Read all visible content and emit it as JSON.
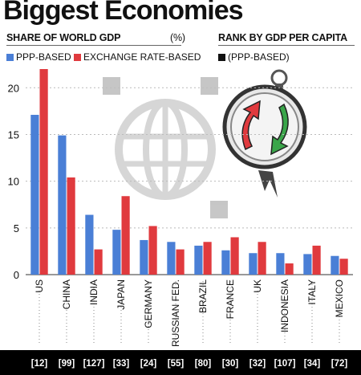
{
  "title": "Biggest Economies",
  "share_heading": "SHARE OF WORLD GDP",
  "share_unit": "(%)",
  "rank_heading": "RANK BY GDP PER CAPITA",
  "legend": {
    "ppp": "PPP-BASED",
    "exchange": "EXCHANGE RATE-BASED",
    "rank": "(PPP-BASED)"
  },
  "colors": {
    "ppp": "#4a7fd6",
    "exchange": "#e03a3e",
    "rank": "#111111",
    "grid": "#bbbbbb"
  },
  "chart_data": {
    "type": "bar",
    "categories": [
      "US",
      "CHINA",
      "INDIA",
      "JAPAN",
      "GERMANY",
      "RUSSIAN FED.",
      "BRAZIL",
      "FRANCE",
      "UK",
      "INDONESIA",
      "ITALY",
      "MEXICO"
    ],
    "series": [
      {
        "name": "PPP-BASED",
        "values": [
          17.1,
          14.9,
          6.4,
          4.8,
          3.7,
          3.5,
          3.1,
          2.6,
          2.3,
          2.3,
          2.2,
          2.0
        ]
      },
      {
        "name": "EXCHANGE RATE-BASED",
        "values": [
          22.0,
          10.4,
          2.7,
          8.4,
          5.2,
          2.7,
          3.5,
          4.0,
          3.5,
          1.2,
          3.1,
          1.7
        ]
      }
    ],
    "ranks": [
      "[12]",
      "[99]",
      "[127]",
      "[33]",
      "[24]",
      "[55]",
      "[80]",
      "[30]",
      "[32]",
      "[107]",
      "[34]",
      "[72]"
    ],
    "yticks": [
      0,
      5,
      10,
      15,
      20
    ],
    "ylim": [
      0,
      22
    ],
    "grid": true
  }
}
